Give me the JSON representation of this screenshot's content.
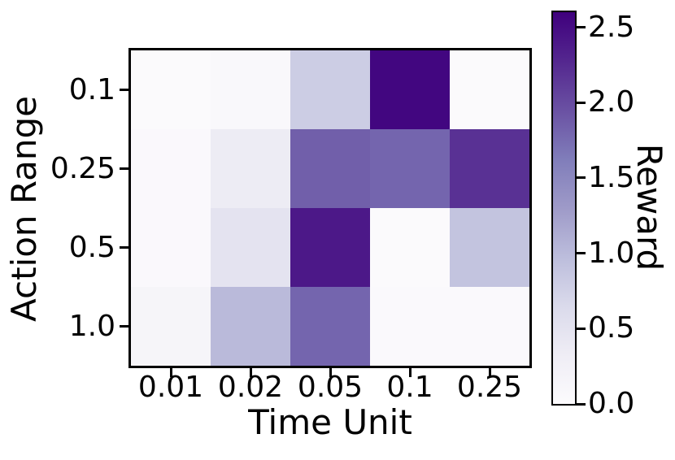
{
  "chart_data": {
    "type": "heatmap",
    "title": "",
    "xlabel": "Time Unit",
    "ylabel": "Action Range",
    "x_categories": [
      "0.01",
      "0.02",
      "0.05",
      "0.1",
      "0.25"
    ],
    "y_categories": [
      "0.1",
      "0.25",
      "0.5",
      "1.0"
    ],
    "values": [
      [
        0.03,
        0.08,
        0.8,
        2.55,
        0.03
      ],
      [
        0.06,
        0.35,
        1.85,
        1.8,
        2.2
      ],
      [
        0.06,
        0.5,
        2.4,
        0.03,
        0.9
      ],
      [
        0.15,
        1.0,
        1.8,
        0.04,
        0.04
      ]
    ],
    "layout": {
      "grid": false,
      "colorbar_position": "right",
      "cell_borders": false
    },
    "colorbar": {
      "label": "Reward",
      "vmin": 0.0,
      "vmax": 2.6,
      "ticks": [
        0.0,
        0.5,
        1.0,
        1.5,
        2.0,
        2.5
      ],
      "tick_labels": [
        "0.0",
        "0.5",
        "1.0",
        "1.5",
        "2.0",
        "2.5"
      ],
      "colormap": "Purples",
      "colormap_stops": [
        "#fcfbfd",
        "#efedf5",
        "#dadaeb",
        "#bcbddc",
        "#9e9ac8",
        "#807dba",
        "#6a51a3",
        "#54278f",
        "#3f007d"
      ]
    }
  },
  "colors": {
    "text": "#000000",
    "axis": "#000000",
    "background": "#ffffff",
    "max_cell": "#3f007d",
    "min_cell": "#fcfbfd"
  }
}
